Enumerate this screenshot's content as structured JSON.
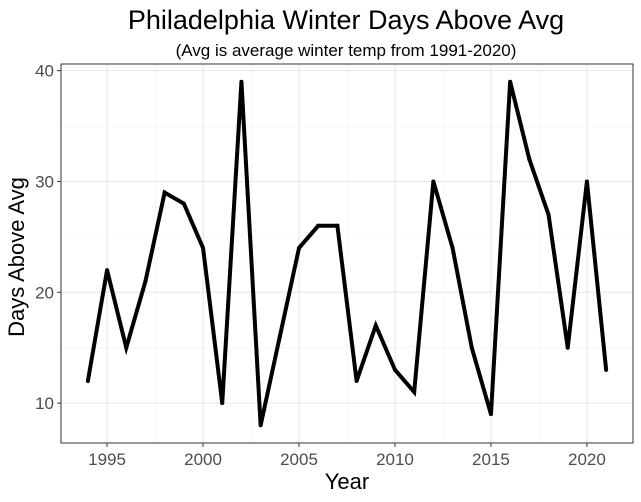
{
  "chart_data": {
    "type": "line",
    "title": "Philadelphia Winter Days Above Avg",
    "subtitle": "(Avg is average winter temp from 1991-2020)",
    "xlabel": "Year",
    "ylabel": "Days Above Avg",
    "xlim": [
      1992.6,
      2022.4
    ],
    "ylim": [
      6.4,
      40.6
    ],
    "x_ticks": [
      1995,
      2000,
      2005,
      2010,
      2015,
      2020
    ],
    "y_ticks": [
      10,
      20,
      30,
      40
    ],
    "grid": true,
    "line_color": "#000000",
    "x": [
      1994,
      1995,
      1996,
      1997,
      1998,
      1999,
      2000,
      2001,
      2002,
      2003,
      2004,
      2005,
      2006,
      2007,
      2008,
      2009,
      2010,
      2011,
      2012,
      2013,
      2014,
      2015,
      2016,
      2017,
      2018,
      2019,
      2020,
      2021
    ],
    "series": [
      {
        "values": [
          12,
          22,
          15,
          21,
          29,
          28,
          24,
          10,
          39,
          8,
          16,
          24,
          26,
          26,
          12,
          17,
          13,
          11,
          30,
          24,
          15,
          9,
          39,
          32,
          27,
          15,
          30,
          13
        ]
      }
    ]
  }
}
